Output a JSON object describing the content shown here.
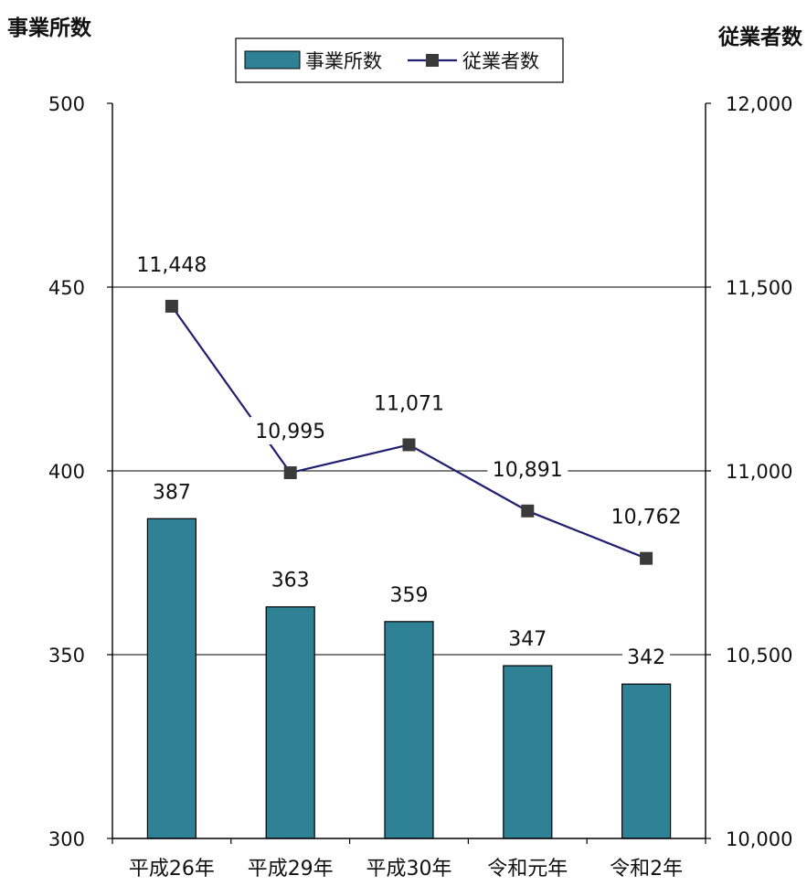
{
  "chart_data": {
    "type": "bar",
    "categories": [
      "平成26年",
      "平成29年",
      "平成30年",
      "令和元年",
      "令和2年"
    ],
    "series": [
      {
        "name": "事業所数",
        "type": "bar",
        "axis": "left",
        "values": [
          387,
          363,
          359,
          347,
          342
        ],
        "labels": [
          "387",
          "363",
          "359",
          "347",
          "342"
        ],
        "color": "#2f8296"
      },
      {
        "name": "従業者数",
        "type": "line",
        "axis": "right",
        "values": [
          11448,
          10995,
          11071,
          10891,
          10762
        ],
        "labels": [
          "11,448",
          "10,995",
          "11,071",
          "10,891",
          "10,762"
        ],
        "color": "#1f1f6e",
        "marker_color": "#3a3a3a"
      }
    ],
    "y_left": {
      "label": "事業所数",
      "ylim": [
        300,
        500
      ],
      "ticks": [
        "300",
        "350",
        "400",
        "450",
        "500"
      ]
    },
    "y_right": {
      "label": "従業者数",
      "ylim": [
        10000,
        12000
      ],
      "ticks": [
        "10,000",
        "10,500",
        "11,000",
        "11,500",
        "12,000"
      ]
    },
    "grid": true,
    "legend_position": "top-center"
  }
}
